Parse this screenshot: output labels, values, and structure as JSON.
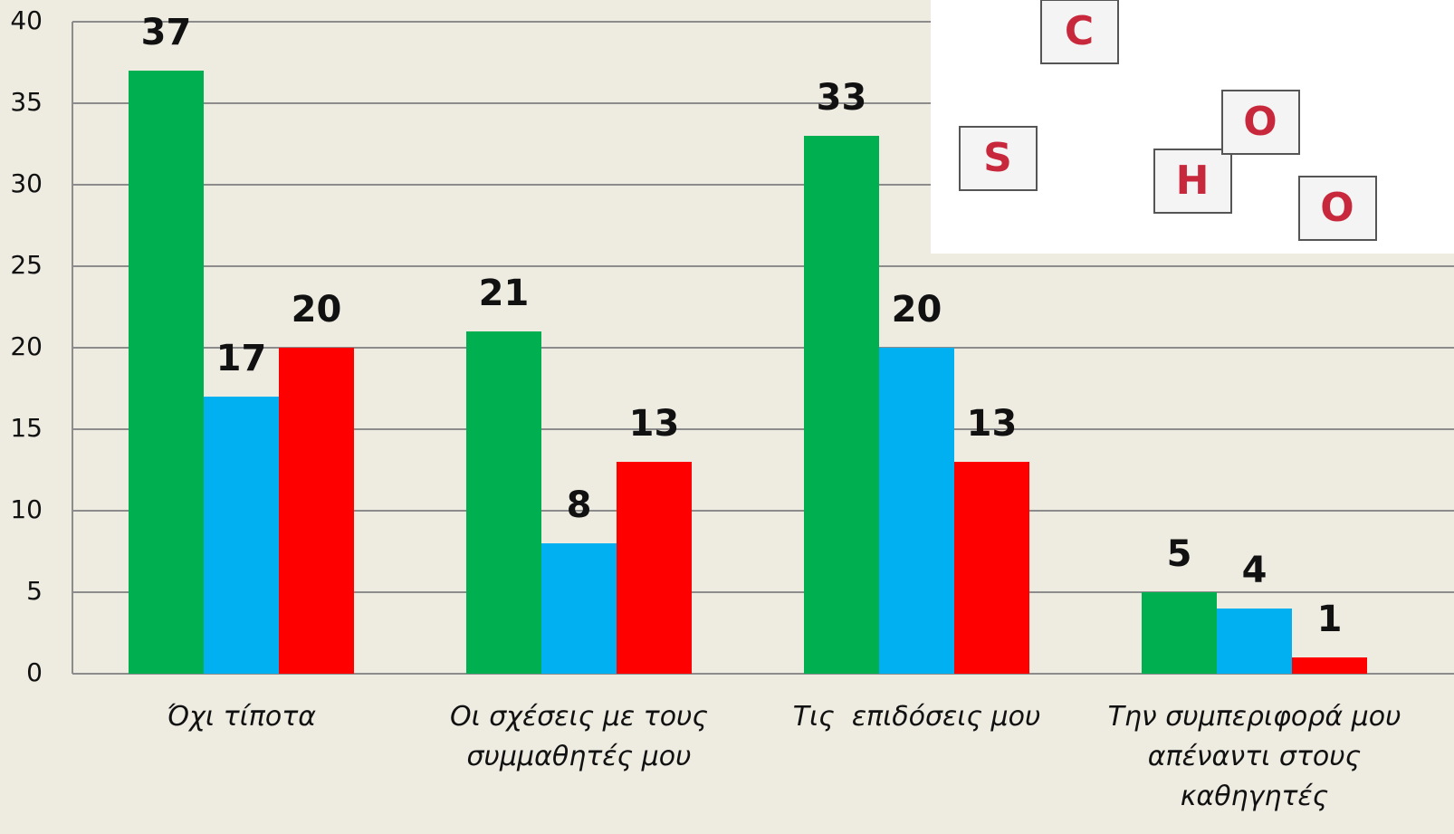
{
  "chart_data": {
    "type": "bar",
    "categories": [
      "Όχι τίποτα",
      "Οι σχέσεις με τους συμμαθητές μου",
      "Τις  επιδόσεις μου",
      "Την συμπεριφορά μου απέναντι στους καθηγητές"
    ],
    "series": [
      {
        "color": "#00b050",
        "values": [
          37,
          21,
          33,
          5
        ]
      },
      {
        "color": "#00b0f0",
        "values": [
          17,
          8,
          20,
          4
        ]
      },
      {
        "color": "#ff0000",
        "values": [
          20,
          13,
          13,
          1
        ]
      }
    ],
    "ylim": [
      0,
      40
    ],
    "yticks": [
      0,
      5,
      10,
      15,
      20,
      25,
      30,
      35,
      40
    ],
    "grid": true
  },
  "illustration": {
    "letters": [
      "S",
      "C",
      "H",
      "O",
      "O"
    ]
  }
}
